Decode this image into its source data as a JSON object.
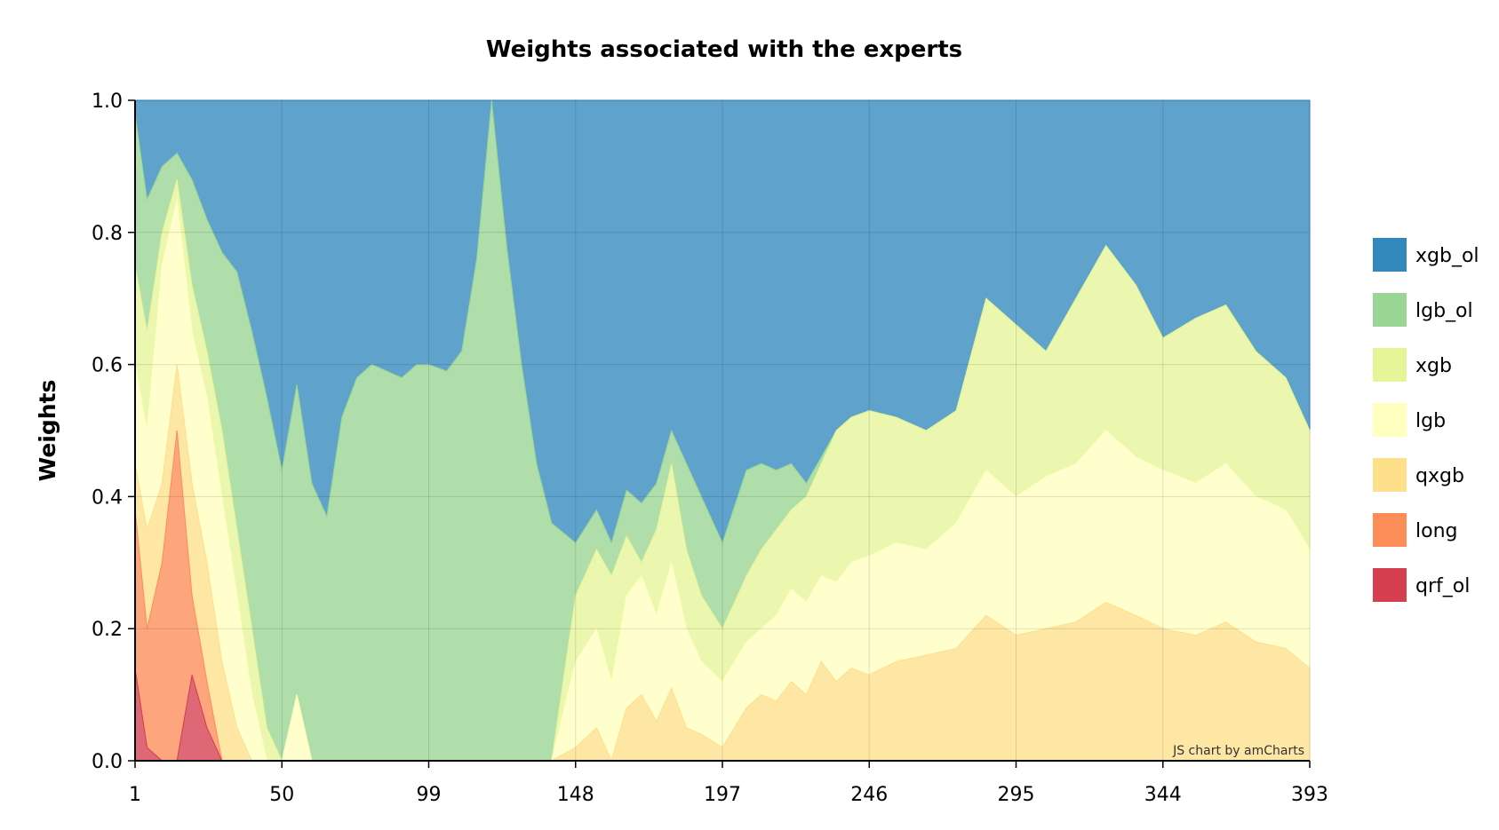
{
  "chart_data": {
    "type": "area",
    "stacked": true,
    "normalized": true,
    "title": "Weights associated with the experts",
    "xlabel": "",
    "ylabel": "Weights",
    "xlim": [
      1,
      393
    ],
    "ylim": [
      0,
      1
    ],
    "x_ticks": [
      1,
      50,
      99,
      148,
      197,
      246,
      295,
      344,
      393
    ],
    "y_ticks": [
      "0.0",
      "0.2",
      "0.4",
      "0.6",
      "0.8",
      "1.0"
    ],
    "grid": true,
    "legend_position": "right",
    "credit": "JS chart by amCharts",
    "boundaries_note": "cumulative upper boundaries of each stacked layer; xgb_ol fills to 1.0",
    "x": [
      1,
      5,
      10,
      15,
      20,
      25,
      30,
      35,
      40,
      45,
      50,
      55,
      60,
      65,
      70,
      75,
      80,
      85,
      90,
      95,
      99,
      105,
      110,
      115,
      120,
      125,
      130,
      135,
      140,
      148,
      155,
      160,
      165,
      170,
      175,
      180,
      185,
      190,
      197,
      205,
      210,
      215,
      220,
      225,
      230,
      235,
      240,
      246,
      255,
      265,
      275,
      285,
      295,
      305,
      315,
      325,
      335,
      344,
      355,
      365,
      375,
      385,
      393
    ],
    "series": [
      {
        "name": "qrf_ol",
        "color": "#d53e4f",
        "cumulative": [
          0.14,
          0.02,
          0.0,
          0.0,
          0.13,
          0.05,
          0.0,
          0.0,
          0.0,
          0.0,
          0.0,
          0.0,
          0.0,
          0.0,
          0.0,
          0.0,
          0.0,
          0.0,
          0.0,
          0.0,
          0.0,
          0.0,
          0.0,
          0.0,
          0.0,
          0.0,
          0.0,
          0.0,
          0.0,
          0.0,
          0.0,
          0.0,
          0.0,
          0.0,
          0.0,
          0.0,
          0.0,
          0.0,
          0.0,
          0.0,
          0.0,
          0.0,
          0.0,
          0.0,
          0.0,
          0.0,
          0.0,
          0.0,
          0.0,
          0.0,
          0.0,
          0.0,
          0.0,
          0.0,
          0.0,
          0.0,
          0.0,
          0.0,
          0.0,
          0.0,
          0.0,
          0.0,
          0.0
        ]
      },
      {
        "name": "long",
        "color": "#fc8d59",
        "cumulative": [
          0.38,
          0.2,
          0.3,
          0.5,
          0.25,
          0.12,
          0.0,
          0.0,
          0.0,
          0.0,
          0.0,
          0.0,
          0.0,
          0.0,
          0.0,
          0.0,
          0.0,
          0.0,
          0.0,
          0.0,
          0.0,
          0.0,
          0.0,
          0.0,
          0.0,
          0.0,
          0.0,
          0.0,
          0.0,
          0.0,
          0.0,
          0.0,
          0.0,
          0.0,
          0.0,
          0.0,
          0.0,
          0.0,
          0.0,
          0.0,
          0.0,
          0.0,
          0.0,
          0.0,
          0.0,
          0.0,
          0.0,
          0.0,
          0.0,
          0.0,
          0.0,
          0.0,
          0.0,
          0.0,
          0.0,
          0.0,
          0.0,
          0.0,
          0.0,
          0.0,
          0.0,
          0.0,
          0.0
        ]
      },
      {
        "name": "qxgb",
        "color": "#fee08b",
        "cumulative": [
          0.45,
          0.35,
          0.42,
          0.6,
          0.42,
          0.3,
          0.15,
          0.05,
          0.0,
          0.0,
          0.0,
          0.0,
          0.0,
          0.0,
          0.0,
          0.0,
          0.0,
          0.0,
          0.0,
          0.0,
          0.0,
          0.0,
          0.0,
          0.0,
          0.0,
          0.0,
          0.0,
          0.0,
          0.0,
          0.02,
          0.05,
          0.0,
          0.08,
          0.1,
          0.06,
          0.11,
          0.05,
          0.04,
          0.02,
          0.08,
          0.1,
          0.09,
          0.12,
          0.1,
          0.15,
          0.12,
          0.14,
          0.13,
          0.15,
          0.16,
          0.17,
          0.22,
          0.19,
          0.2,
          0.21,
          0.24,
          0.22,
          0.2,
          0.19,
          0.21,
          0.18,
          0.17,
          0.14
        ]
      },
      {
        "name": "lgb",
        "color": "#ffffbf",
        "cumulative": [
          0.6,
          0.5,
          0.75,
          0.85,
          0.65,
          0.55,
          0.4,
          0.25,
          0.1,
          0.0,
          0.0,
          0.1,
          0.0,
          0.0,
          0.0,
          0.0,
          0.0,
          0.0,
          0.0,
          0.0,
          0.0,
          0.0,
          0.0,
          0.0,
          0.0,
          0.0,
          0.0,
          0.0,
          0.0,
          0.15,
          0.2,
          0.12,
          0.25,
          0.28,
          0.22,
          0.3,
          0.2,
          0.15,
          0.12,
          0.18,
          0.2,
          0.22,
          0.26,
          0.24,
          0.28,
          0.27,
          0.3,
          0.31,
          0.33,
          0.32,
          0.36,
          0.44,
          0.4,
          0.43,
          0.45,
          0.5,
          0.46,
          0.44,
          0.42,
          0.45,
          0.4,
          0.38,
          0.32
        ]
      },
      {
        "name": "xgb",
        "color": "#e6f598",
        "cumulative": [
          0.75,
          0.65,
          0.8,
          0.88,
          0.72,
          0.62,
          0.5,
          0.35,
          0.2,
          0.05,
          0.0,
          0.1,
          0.0,
          0.0,
          0.0,
          0.0,
          0.0,
          0.0,
          0.0,
          0.0,
          0.0,
          0.0,
          0.0,
          0.0,
          0.0,
          0.0,
          0.0,
          0.0,
          0.0,
          0.25,
          0.32,
          0.28,
          0.34,
          0.3,
          0.35,
          0.45,
          0.32,
          0.25,
          0.2,
          0.28,
          0.32,
          0.35,
          0.38,
          0.4,
          0.45,
          0.5,
          0.52,
          0.53,
          0.52,
          0.5,
          0.53,
          0.7,
          0.66,
          0.62,
          0.7,
          0.78,
          0.72,
          0.64,
          0.67,
          0.69,
          0.62,
          0.58,
          0.5
        ]
      },
      {
        "name": "lgb_ol",
        "color": "#99d594",
        "cumulative": [
          0.98,
          0.85,
          0.9,
          0.92,
          0.88,
          0.82,
          0.77,
          0.74,
          0.65,
          0.55,
          0.44,
          0.57,
          0.42,
          0.37,
          0.52,
          0.58,
          0.6,
          0.59,
          0.58,
          0.6,
          0.6,
          0.59,
          0.62,
          0.76,
          1.0,
          0.78,
          0.6,
          0.45,
          0.36,
          0.33,
          0.38,
          0.33,
          0.41,
          0.39,
          0.42,
          0.5,
          0.45,
          0.4,
          0.33,
          0.44,
          0.45,
          0.44,
          0.45,
          0.42,
          0.46,
          0.5,
          0.52,
          0.53,
          0.52,
          0.5,
          0.53,
          0.7,
          0.66,
          0.62,
          0.7,
          0.78,
          0.72,
          0.64,
          0.67,
          0.69,
          0.62,
          0.58,
          0.5
        ]
      },
      {
        "name": "xgb_ol",
        "color": "#3288bd",
        "cumulative": [
          1.0,
          1.0,
          1.0,
          1.0,
          1.0,
          1.0,
          1.0,
          1.0,
          1.0,
          1.0,
          1.0,
          1.0,
          1.0,
          1.0,
          1.0,
          1.0,
          1.0,
          1.0,
          1.0,
          1.0,
          1.0,
          1.0,
          1.0,
          1.0,
          1.0,
          1.0,
          1.0,
          1.0,
          1.0,
          1.0,
          1.0,
          1.0,
          1.0,
          1.0,
          1.0,
          1.0,
          1.0,
          1.0,
          1.0,
          1.0,
          1.0,
          1.0,
          1.0,
          1.0,
          1.0,
          1.0,
          1.0,
          1.0,
          1.0,
          1.0,
          1.0,
          1.0,
          1.0,
          1.0,
          1.0,
          1.0,
          1.0,
          1.0,
          1.0,
          1.0,
          1.0,
          1.0,
          1.0
        ]
      }
    ],
    "legend_order": [
      "xgb_ol",
      "lgb_ol",
      "xgb",
      "lgb",
      "qxgb",
      "long",
      "qrf_ol"
    ]
  }
}
